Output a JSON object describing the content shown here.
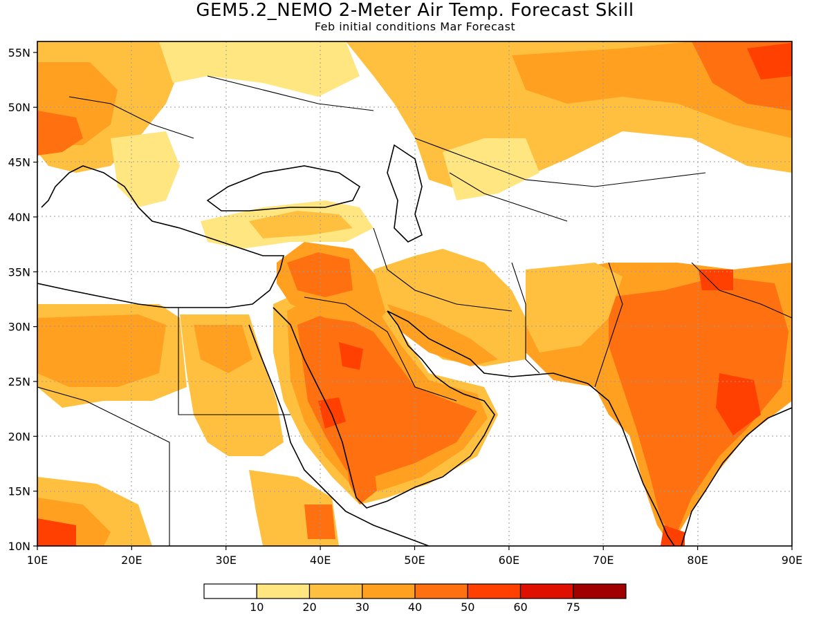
{
  "title": "GEM5.2_NEMO 2-Meter Air Temp. Forecast Skill",
  "subtitle": "Feb initial conditions  Mar Forecast",
  "map": {
    "lon_range": [
      10,
      90
    ],
    "lat_range": [
      10,
      56
    ],
    "x_ticks": [
      "10E",
      "20E",
      "30E",
      "40E",
      "50E",
      "60E",
      "70E",
      "80E",
      "90E"
    ],
    "y_ticks": [
      "55N",
      "50N",
      "45N",
      "40N",
      "35N",
      "30N",
      "25N",
      "20N",
      "15N",
      "10N"
    ],
    "gridlines": "dotted"
  },
  "colorbar": {
    "colors": [
      "#ffffff",
      "#ffe680",
      "#ffc040",
      "#ffa020",
      "#ff7010",
      "#ff4000",
      "#e01000",
      "#a00000"
    ],
    "labels": [
      "10",
      "20",
      "30",
      "40",
      "50",
      "60",
      "75"
    ]
  }
}
